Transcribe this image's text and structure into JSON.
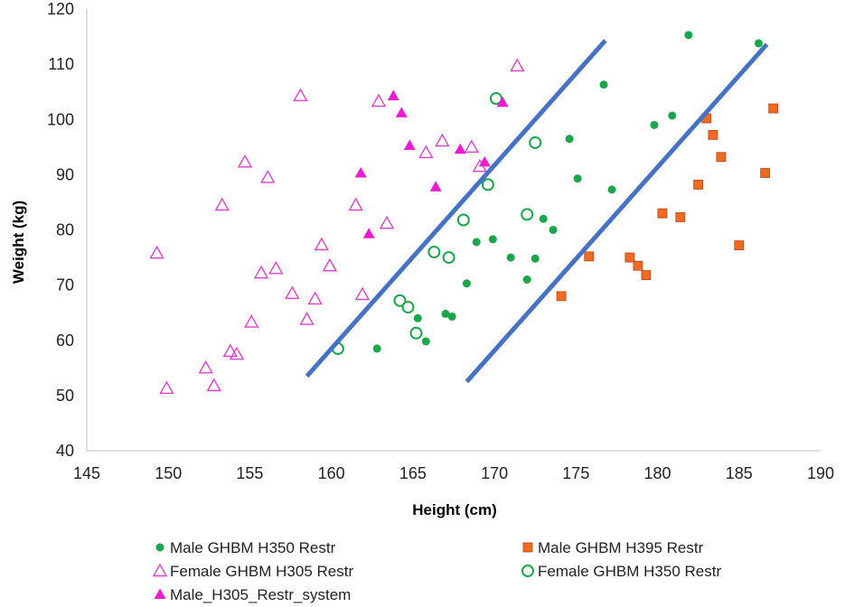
{
  "chart_data": {
    "type": "scatter",
    "title": "",
    "xlabel": "Height (cm)",
    "ylabel": "Weight (kg)",
    "xlim": [
      145,
      190
    ],
    "ylim": [
      40,
      120
    ],
    "xticks": [
      145,
      150,
      155,
      160,
      165,
      170,
      175,
      180,
      185,
      190
    ],
    "yticks": [
      40,
      50,
      60,
      70,
      80,
      90,
      100,
      110,
      120
    ],
    "grid": false,
    "legend_position": "bottom",
    "series": [
      {
        "name": "Male GHBM H350 Restr",
        "marker": "filled-circle",
        "color": "#1aa64a",
        "points": [
          [
            162.8,
            58.5
          ],
          [
            165.3,
            64
          ],
          [
            165.8,
            59.8
          ],
          [
            167,
            64.8
          ],
          [
            167.4,
            64.3
          ],
          [
            168.3,
            70.3
          ],
          [
            168.9,
            77.8
          ],
          [
            169.9,
            78.3
          ],
          [
            171,
            75
          ],
          [
            172,
            71
          ],
          [
            172.5,
            74.8
          ],
          [
            173,
            82
          ],
          [
            173.6,
            80
          ],
          [
            174.6,
            96.5
          ],
          [
            175.1,
            89.3
          ],
          [
            177.2,
            87.3
          ],
          [
            176.7,
            106.3
          ],
          [
            179.8,
            99
          ],
          [
            180.9,
            100.7
          ],
          [
            181.9,
            115.3
          ],
          [
            186.2,
            113.8
          ]
        ]
      },
      {
        "name": "Male GHBM H395 Restr",
        "marker": "filled-square",
        "color": "#f06a24",
        "points": [
          [
            174.1,
            68
          ],
          [
            175.8,
            75.2
          ],
          [
            178.3,
            75
          ],
          [
            178.8,
            73.5
          ],
          [
            179.3,
            71.8
          ],
          [
            180.3,
            83
          ],
          [
            181.4,
            82.3
          ],
          [
            182.5,
            88.2
          ],
          [
            183,
            100.2
          ],
          [
            183.4,
            97.2
          ],
          [
            183.9,
            93.2
          ],
          [
            185,
            77.2
          ],
          [
            186.6,
            90.3
          ],
          [
            187.1,
            102
          ]
        ]
      },
      {
        "name": "Female GHBM H305 Restr",
        "marker": "open-triangle",
        "color": "#e040d0",
        "points": [
          [
            149.3,
            75.8
          ],
          [
            149.9,
            51.3
          ],
          [
            152.3,
            55
          ],
          [
            152.8,
            51.8
          ],
          [
            153.3,
            84.5
          ],
          [
            153.8,
            58
          ],
          [
            154.2,
            57.5
          ],
          [
            154.7,
            92.3
          ],
          [
            155.1,
            63.3
          ],
          [
            155.7,
            72.2
          ],
          [
            156.1,
            89.5
          ],
          [
            156.6,
            73
          ],
          [
            157.6,
            68.5
          ],
          [
            158.1,
            104.3
          ],
          [
            158.5,
            63.8
          ],
          [
            159,
            67.5
          ],
          [
            159.4,
            77.3
          ],
          [
            159.9,
            73.5
          ],
          [
            161.5,
            84.5
          ],
          [
            161.9,
            68.3
          ],
          [
            162.9,
            103.3
          ],
          [
            163.4,
            81.2
          ],
          [
            165.8,
            94
          ],
          [
            166.8,
            96.1
          ],
          [
            168.6,
            95
          ],
          [
            169.1,
            91.5
          ],
          [
            171.4,
            109.7
          ]
        ]
      },
      {
        "name": "Female GHBM H350 Restr",
        "marker": "open-circle",
        "color": "#1aa64a",
        "points": [
          [
            160.4,
            58.5
          ],
          [
            164.2,
            67.2
          ],
          [
            164.7,
            66
          ],
          [
            165.2,
            61.3
          ],
          [
            166.3,
            76
          ],
          [
            167.2,
            75
          ],
          [
            168.1,
            81.8
          ],
          [
            169.6,
            88.2
          ],
          [
            170.1,
            103.8
          ],
          [
            172,
            82.8
          ],
          [
            172.5,
            95.8
          ]
        ]
      },
      {
        "name": "Male_H305_Restr_system",
        "marker": "filled-triangle",
        "color": "#ee1bd2",
        "points": [
          [
            161.8,
            90.3
          ],
          [
            162.3,
            79.3
          ],
          [
            163.8,
            104.3
          ],
          [
            164.3,
            101.2
          ],
          [
            164.8,
            95.3
          ],
          [
            166.4,
            87.8
          ],
          [
            167.9,
            94.6
          ],
          [
            169.4,
            92.3
          ],
          [
            170.5,
            103.1
          ]
        ]
      }
    ],
    "reference_lines": [
      {
        "color": "#4472c4",
        "points": [
          [
            158.5,
            53.5
          ],
          [
            176.8,
            114.3
          ]
        ]
      },
      {
        "color": "#4472c4",
        "points": [
          [
            168.3,
            52.5
          ],
          [
            186.7,
            113.6
          ]
        ]
      }
    ]
  }
}
